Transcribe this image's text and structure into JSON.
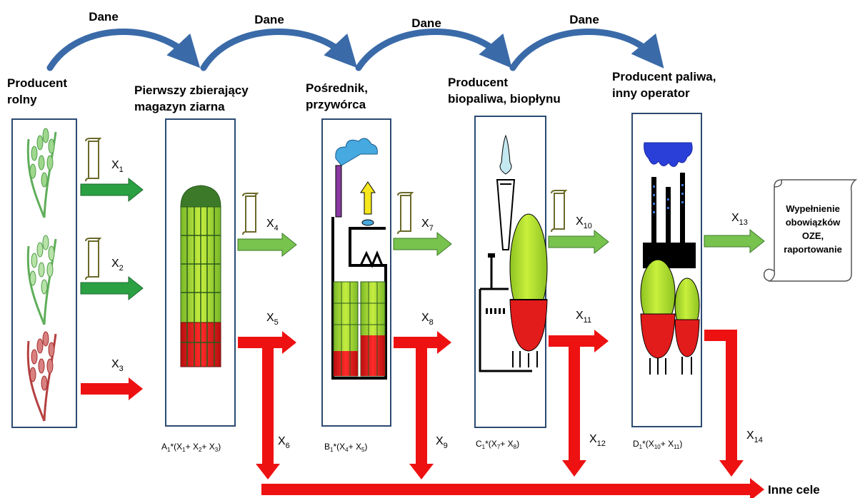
{
  "data_arrows": [
    "Dane",
    "Dane",
    "Dane",
    "Dane"
  ],
  "stages": [
    {
      "title_lines": [
        "Producent",
        "rolny"
      ]
    },
    {
      "title_lines": [
        "Pierwszy zbierający",
        "magazyn ziarna"
      ]
    },
    {
      "title_lines": [
        "Pośrednik,",
        "przywórca"
      ]
    },
    {
      "title_lines": [
        "Producent",
        "biopaliwa, biopłynu"
      ]
    },
    {
      "title_lines": [
        "Producent paliwa,",
        "inny operator"
      ]
    }
  ],
  "flows": [
    {
      "base": "X",
      "sub": "1"
    },
    {
      "base": "X",
      "sub": "2"
    },
    {
      "base": "X",
      "sub": "3"
    },
    {
      "base": "X",
      "sub": "4"
    },
    {
      "base": "X",
      "sub": "5"
    },
    {
      "base": "X",
      "sub": "6"
    },
    {
      "base": "X",
      "sub": "7"
    },
    {
      "base": "X",
      "sub": "8"
    },
    {
      "base": "X",
      "sub": "9"
    },
    {
      "base": "X",
      "sub": "10"
    },
    {
      "base": "X",
      "sub": "11"
    },
    {
      "base": "X",
      "sub": "12"
    },
    {
      "base": "X",
      "sub": "13"
    },
    {
      "base": "X",
      "sub": "14"
    }
  ],
  "formulas": [
    {
      "coef": "A",
      "coef_sub": "1",
      "terms": [
        [
          "X",
          "1"
        ],
        [
          "X",
          "2"
        ],
        [
          "X",
          "3"
        ]
      ]
    },
    {
      "coef": "B",
      "coef_sub": "1",
      "terms": [
        [
          "X",
          "4"
        ],
        [
          "X",
          "5"
        ]
      ]
    },
    {
      "coef": "C",
      "coef_sub": "1",
      "terms": [
        [
          "X",
          "7"
        ],
        [
          "X",
          "8"
        ]
      ]
    },
    {
      "coef": "D",
      "coef_sub": "1",
      "terms": [
        [
          "X",
          "10"
        ],
        [
          "X",
          "11"
        ]
      ]
    }
  ],
  "scroll_text_lines": [
    "Wypełnienie",
    "obowiązków",
    "OZE,",
    "raportowanie"
  ],
  "inne_cele": "Inne cele",
  "colors": {
    "data_arrow": "#3a6aa8",
    "green_arrow": "#2aa043",
    "light_green_arrow": "#78c24e",
    "red_arrow": "#ee1111",
    "box_border": "#2c4a72",
    "silo_green": "#b4e030",
    "silo_red": "#e21b1b",
    "scroll_doc": "#6b6a2a"
  },
  "icons": [
    "wheat-icon",
    "silo-icon",
    "factory-icon",
    "refinery-icon",
    "power-plant-icon",
    "document-scroll-icon"
  ]
}
